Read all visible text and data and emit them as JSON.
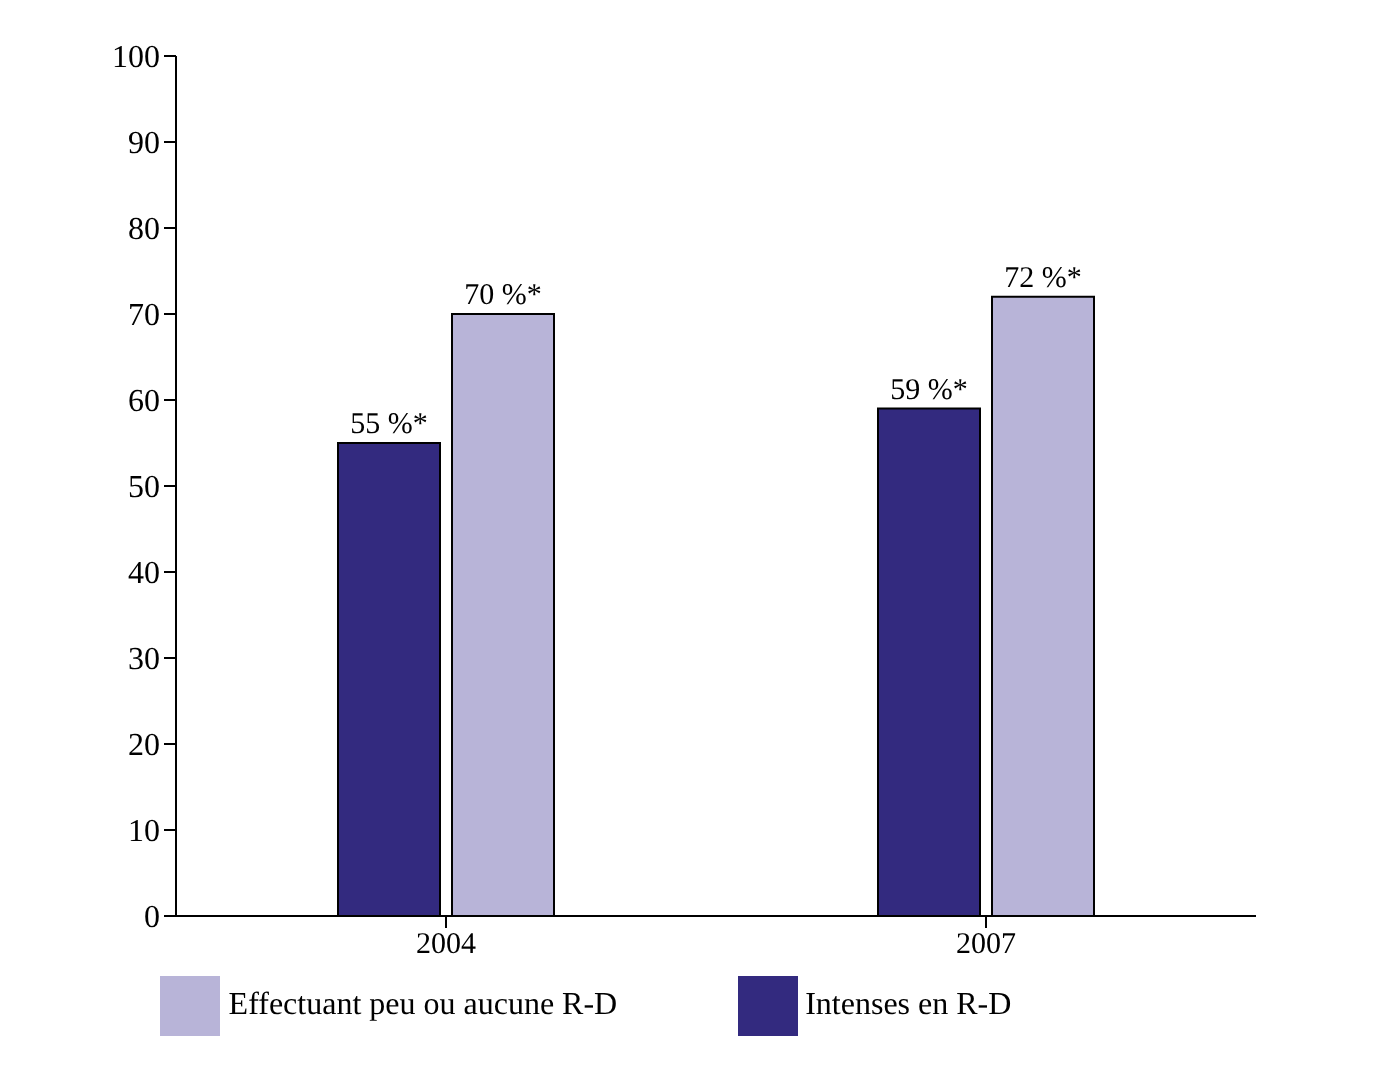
{
  "chart_data": {
    "type": "bar",
    "categories": [
      "2004",
      "2007"
    ],
    "series": [
      {
        "name": "Intenses en R-D",
        "color": "#332a7f",
        "values": [
          55,
          59
        ],
        "value_labels": [
          "55 %*",
          "59 %*"
        ]
      },
      {
        "name": "Effectuant peu ou aucune R-D",
        "color": "#b8b4d8",
        "values": [
          70,
          72
        ],
        "value_labels": [
          "70 %*",
          "72 %*"
        ]
      }
    ],
    "ylim": [
      0,
      100
    ],
    "yticks": [
      0,
      10,
      20,
      30,
      40,
      50,
      60,
      70,
      80,
      90,
      100
    ],
    "grid": false,
    "legend": "bottom"
  }
}
